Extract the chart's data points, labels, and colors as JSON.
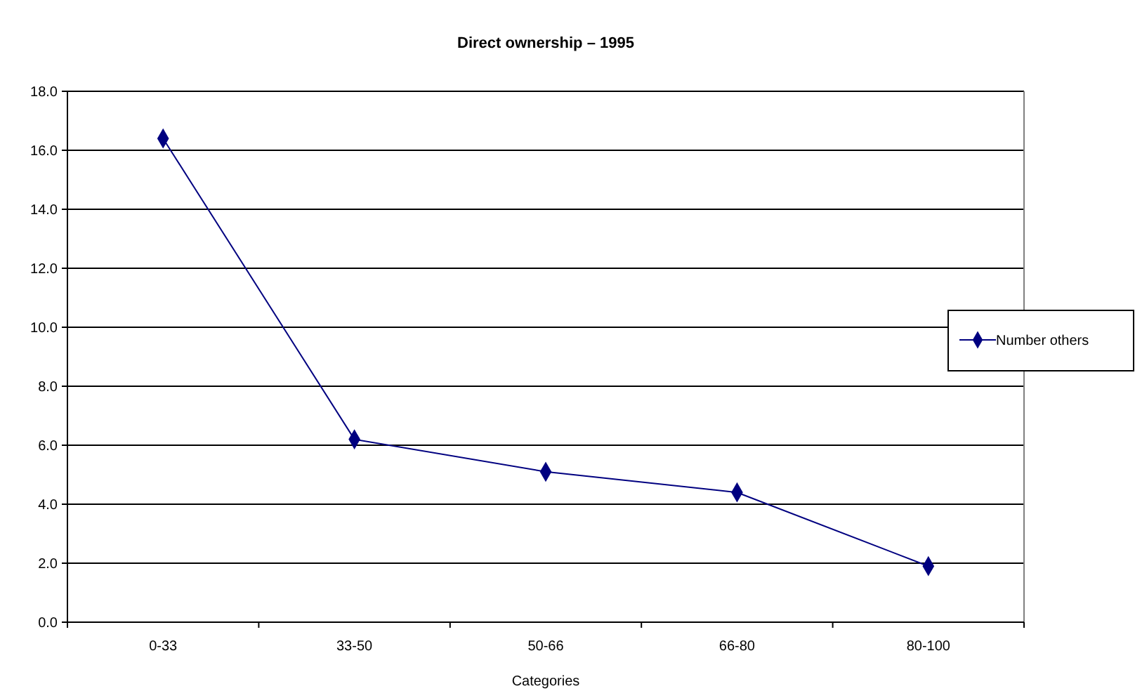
{
  "chart_data": {
    "type": "line",
    "title": "Direct ownership – 1995",
    "xlabel": "Categories",
    "categories": [
      "0-33",
      "33-50",
      "50-66",
      "66-80",
      "80-100"
    ],
    "series": [
      {
        "name": "Number others",
        "color": "#000080",
        "values": [
          16.4,
          6.2,
          5.1,
          4.4,
          1.9
        ]
      }
    ],
    "ylim": [
      0,
      18
    ],
    "yticks": [
      {
        "value": 0,
        "label": "0.0"
      },
      {
        "value": 2,
        "label": "2.0"
      },
      {
        "value": 4,
        "label": "4.0"
      },
      {
        "value": 6,
        "label": "6.0"
      },
      {
        "value": 8,
        "label": "8.0"
      },
      {
        "value": 10,
        "label": "10.0"
      },
      {
        "value": 12,
        "label": "12.0"
      },
      {
        "value": 14,
        "label": "14.0"
      },
      {
        "value": 16,
        "label": "16.0"
      },
      {
        "value": 18,
        "label": "18.0"
      }
    ],
    "grid": "y",
    "legend": "right",
    "marker": "diamond",
    "line_style": "solid"
  }
}
